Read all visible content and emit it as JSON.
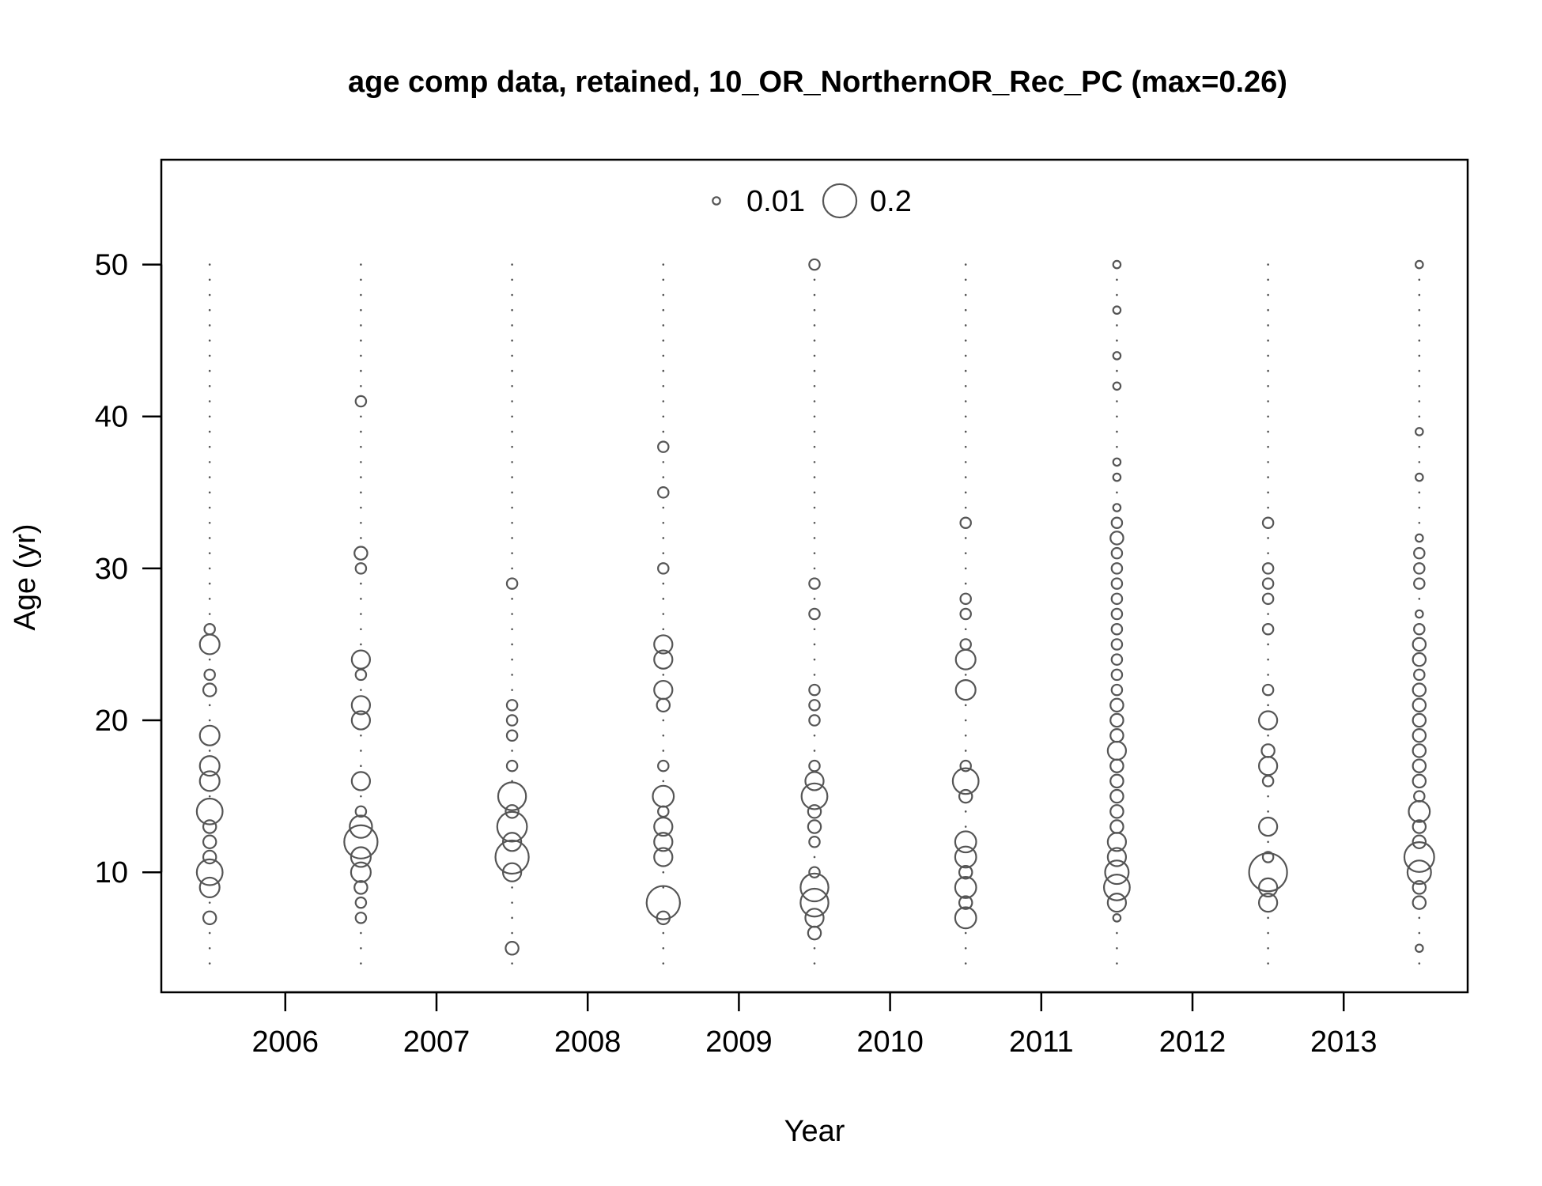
{
  "chart_data": {
    "type": "scatter",
    "title": "age comp data, retained, 10_OR_NorthernOR_Rec_PC (max=0.26)",
    "xlabel": "Year",
    "ylabel": "Age (yr)",
    "xlim": [
      2005.18,
      2013.82
    ],
    "ylim": [
      2.1,
      56.9
    ],
    "x_ticks": [
      2006,
      2007,
      2008,
      2009,
      2010,
      2011,
      2012,
      2013
    ],
    "y_ticks": [
      10,
      20,
      30,
      40,
      50
    ],
    "legend": {
      "position": "top",
      "entries": [
        {
          "label": "0.01",
          "value": 0.01
        },
        {
          "label": "0.2",
          "value": 0.2
        }
      ]
    },
    "max_proportion": 0.26,
    "ages": [
      4,
      50
    ],
    "colors": {
      "marker": "#555555",
      "axis": "#000000"
    },
    "series": [
      {
        "year": 2005.5,
        "points": [
          [
            7,
            0.03
          ],
          [
            9,
            0.07
          ],
          [
            10,
            0.12
          ],
          [
            11,
            0.03
          ],
          [
            12,
            0.03
          ],
          [
            13,
            0.03
          ],
          [
            14,
            0.12
          ],
          [
            16,
            0.07
          ],
          [
            17,
            0.07
          ],
          [
            19,
            0.07
          ],
          [
            22,
            0.03
          ],
          [
            23,
            0.02
          ],
          [
            25,
            0.07
          ],
          [
            26,
            0.02
          ]
        ]
      },
      {
        "year": 2006.5,
        "points": [
          [
            7,
            0.02
          ],
          [
            8,
            0.02
          ],
          [
            9,
            0.03
          ],
          [
            10,
            0.07
          ],
          [
            11,
            0.07
          ],
          [
            12,
            0.2
          ],
          [
            13,
            0.09
          ],
          [
            14,
            0.02
          ],
          [
            16,
            0.06
          ],
          [
            20,
            0.06
          ],
          [
            21,
            0.06
          ],
          [
            23,
            0.02
          ],
          [
            24,
            0.06
          ],
          [
            30,
            0.02
          ],
          [
            31,
            0.03
          ],
          [
            41,
            0.02
          ]
        ]
      },
      {
        "year": 2007.5,
        "points": [
          [
            5,
            0.03
          ],
          [
            10,
            0.06
          ],
          [
            11,
            0.2
          ],
          [
            12,
            0.06
          ],
          [
            13,
            0.16
          ],
          [
            14,
            0.03
          ],
          [
            15,
            0.14
          ],
          [
            17,
            0.02
          ],
          [
            19,
            0.02
          ],
          [
            20,
            0.02
          ],
          [
            21,
            0.02
          ],
          [
            29,
            0.02
          ]
        ]
      },
      {
        "year": 2008.5,
        "points": [
          [
            7,
            0.03
          ],
          [
            8,
            0.2
          ],
          [
            11,
            0.06
          ],
          [
            12,
            0.06
          ],
          [
            13,
            0.06
          ],
          [
            14,
            0.02
          ],
          [
            15,
            0.08
          ],
          [
            17,
            0.02
          ],
          [
            21,
            0.03
          ],
          [
            22,
            0.06
          ],
          [
            24,
            0.06
          ],
          [
            25,
            0.06
          ],
          [
            30,
            0.02
          ],
          [
            35,
            0.02
          ],
          [
            38,
            0.02
          ]
        ]
      },
      {
        "year": 2009.5,
        "points": [
          [
            6,
            0.03
          ],
          [
            7,
            0.06
          ],
          [
            8,
            0.14
          ],
          [
            9,
            0.14
          ],
          [
            10,
            0.02
          ],
          [
            12,
            0.02
          ],
          [
            13,
            0.03
          ],
          [
            14,
            0.03
          ],
          [
            15,
            0.12
          ],
          [
            16,
            0.06
          ],
          [
            17,
            0.02
          ],
          [
            20,
            0.02
          ],
          [
            21,
            0.02
          ],
          [
            22,
            0.02
          ],
          [
            27,
            0.02
          ],
          [
            29,
            0.02
          ],
          [
            50,
            0.02
          ]
        ]
      },
      {
        "year": 2010.5,
        "points": [
          [
            7,
            0.08
          ],
          [
            8,
            0.03
          ],
          [
            9,
            0.08
          ],
          [
            10,
            0.03
          ],
          [
            11,
            0.08
          ],
          [
            12,
            0.08
          ],
          [
            15,
            0.03
          ],
          [
            16,
            0.12
          ],
          [
            17,
            0.02
          ],
          [
            22,
            0.07
          ],
          [
            24,
            0.07
          ],
          [
            25,
            0.02
          ],
          [
            27,
            0.02
          ],
          [
            28,
            0.02
          ],
          [
            33,
            0.02
          ]
        ]
      },
      {
        "year": 2011.5,
        "points": [
          [
            7,
            0.01
          ],
          [
            8,
            0.06
          ],
          [
            9,
            0.12
          ],
          [
            10,
            0.1
          ],
          [
            11,
            0.06
          ],
          [
            12,
            0.06
          ],
          [
            13,
            0.03
          ],
          [
            14,
            0.03
          ],
          [
            15,
            0.03
          ],
          [
            16,
            0.03
          ],
          [
            17,
            0.03
          ],
          [
            18,
            0.06
          ],
          [
            19,
            0.03
          ],
          [
            20,
            0.03
          ],
          [
            21,
            0.03
          ],
          [
            22,
            0.02
          ],
          [
            23,
            0.02
          ],
          [
            24,
            0.02
          ],
          [
            25,
            0.02
          ],
          [
            26,
            0.02
          ],
          [
            27,
            0.02
          ],
          [
            28,
            0.02
          ],
          [
            29,
            0.02
          ],
          [
            30,
            0.02
          ],
          [
            31,
            0.02
          ],
          [
            32,
            0.03
          ],
          [
            33,
            0.02
          ],
          [
            34,
            0.01
          ],
          [
            36,
            0.01
          ],
          [
            37,
            0.01
          ],
          [
            42,
            0.01
          ],
          [
            44,
            0.01
          ],
          [
            47,
            0.01
          ],
          [
            50,
            0.01
          ]
        ]
      },
      {
        "year": 2012.5,
        "points": [
          [
            8,
            0.06
          ],
          [
            9,
            0.06
          ],
          [
            10,
            0.26
          ],
          [
            11,
            0.02
          ],
          [
            13,
            0.06
          ],
          [
            16,
            0.02
          ],
          [
            17,
            0.06
          ],
          [
            18,
            0.03
          ],
          [
            20,
            0.06
          ],
          [
            22,
            0.02
          ],
          [
            26,
            0.02
          ],
          [
            28,
            0.02
          ],
          [
            29,
            0.02
          ],
          [
            30,
            0.02
          ],
          [
            33,
            0.02
          ]
        ]
      },
      {
        "year": 2013.5,
        "points": [
          [
            5,
            0.01
          ],
          [
            8,
            0.03
          ],
          [
            9,
            0.03
          ],
          [
            10,
            0.1
          ],
          [
            11,
            0.16
          ],
          [
            12,
            0.03
          ],
          [
            13,
            0.03
          ],
          [
            14,
            0.08
          ],
          [
            15,
            0.02
          ],
          [
            16,
            0.03
          ],
          [
            17,
            0.03
          ],
          [
            18,
            0.03
          ],
          [
            19,
            0.03
          ],
          [
            20,
            0.03
          ],
          [
            21,
            0.03
          ],
          [
            22,
            0.03
          ],
          [
            23,
            0.02
          ],
          [
            24,
            0.03
          ],
          [
            25,
            0.03
          ],
          [
            26,
            0.02
          ],
          [
            27,
            0.01
          ],
          [
            29,
            0.02
          ],
          [
            30,
            0.02
          ],
          [
            31,
            0.02
          ],
          [
            32,
            0.01
          ],
          [
            36,
            0.01
          ],
          [
            39,
            0.01
          ],
          [
            50,
            0.01
          ]
        ]
      }
    ]
  }
}
